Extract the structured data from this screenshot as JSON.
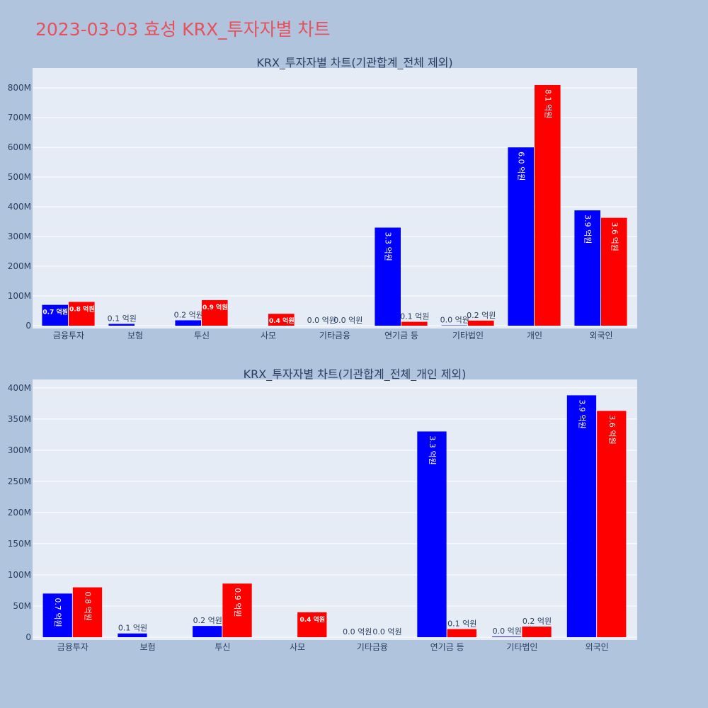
{
  "title": "2023-03-03 효성 KRX_투자자별 차트",
  "colors": {
    "page_bg": "#b0c4de",
    "plot_bg": "#e5ecf6",
    "grid": "#ffffff",
    "series_a": "#0000ff",
    "series_b": "#ff0000",
    "text": "#2a3f5f"
  },
  "chart_data": [
    {
      "type": "bar",
      "title": "KRX_투자자별 차트(기관합계_전체 제외)",
      "categories": [
        "금융투자",
        "보험",
        "투신",
        "사모",
        "기타금융",
        "연기금 등",
        "기타법인",
        "개인",
        "외국인"
      ],
      "ylim": [
        0,
        860000000
      ],
      "yticks": [
        0,
        100000000,
        200000000,
        300000000,
        400000000,
        500000000,
        600000000,
        700000000,
        800000000
      ],
      "ytick_labels": [
        "0",
        "100M",
        "200M",
        "300M",
        "400M",
        "500M",
        "600M",
        "700M",
        "800M"
      ],
      "grid": true,
      "series": [
        {
          "values": [
            70000000,
            6000000,
            18000000,
            0,
            0,
            330000000,
            1000000,
            600000000,
            388000000
          ],
          "labels": [
            "0.7 억원",
            "0.1 억원",
            "0.2 억원",
            "",
            "0.0 억원",
            "3.3 억원",
            "0.0 억원",
            "6.0 억원",
            "3.9 억원"
          ]
        },
        {
          "values": [
            80000000,
            0,
            86000000,
            40000000,
            0,
            13000000,
            17000000,
            810000000,
            363000000
          ],
          "labels": [
            "0.8 억원",
            "",
            "0.9 억원",
            "0.4 억원",
            "0.0 억원",
            "0.1 억원",
            "0.2 억원",
            "8.1 억원",
            "3.6 억원"
          ]
        }
      ]
    },
    {
      "type": "bar",
      "title": "KRX_투자자별 차트(기관합계_전체_개인 제외)",
      "categories": [
        "금융투자",
        "보험",
        "투신",
        "사모",
        "기타금융",
        "연기금 등",
        "기타법인",
        "외국인"
      ],
      "ylim": [
        0,
        410000000
      ],
      "yticks": [
        0,
        50000000,
        100000000,
        150000000,
        200000000,
        250000000,
        300000000,
        350000000,
        400000000
      ],
      "ytick_labels": [
        "0",
        "50M",
        "100M",
        "150M",
        "200M",
        "250M",
        "300M",
        "350M",
        "400M"
      ],
      "grid": true,
      "series": [
        {
          "values": [
            70000000,
            6000000,
            18000000,
            0,
            0,
            330000000,
            1000000,
            388000000
          ],
          "labels": [
            "0.7 억원",
            "0.1 억원",
            "0.2 억원",
            "",
            "0.0 억원",
            "3.3 억원",
            "0.0 억원",
            "3.9 억원"
          ]
        },
        {
          "values": [
            80000000,
            0,
            86000000,
            40000000,
            0,
            13000000,
            17000000,
            363000000
          ],
          "labels": [
            "0.8 억원",
            "",
            "0.9 억원",
            "0.4 억원",
            "0.0 억원",
            "0.1 억원",
            "0.2 억원",
            "3.6 억원"
          ]
        }
      ]
    }
  ]
}
